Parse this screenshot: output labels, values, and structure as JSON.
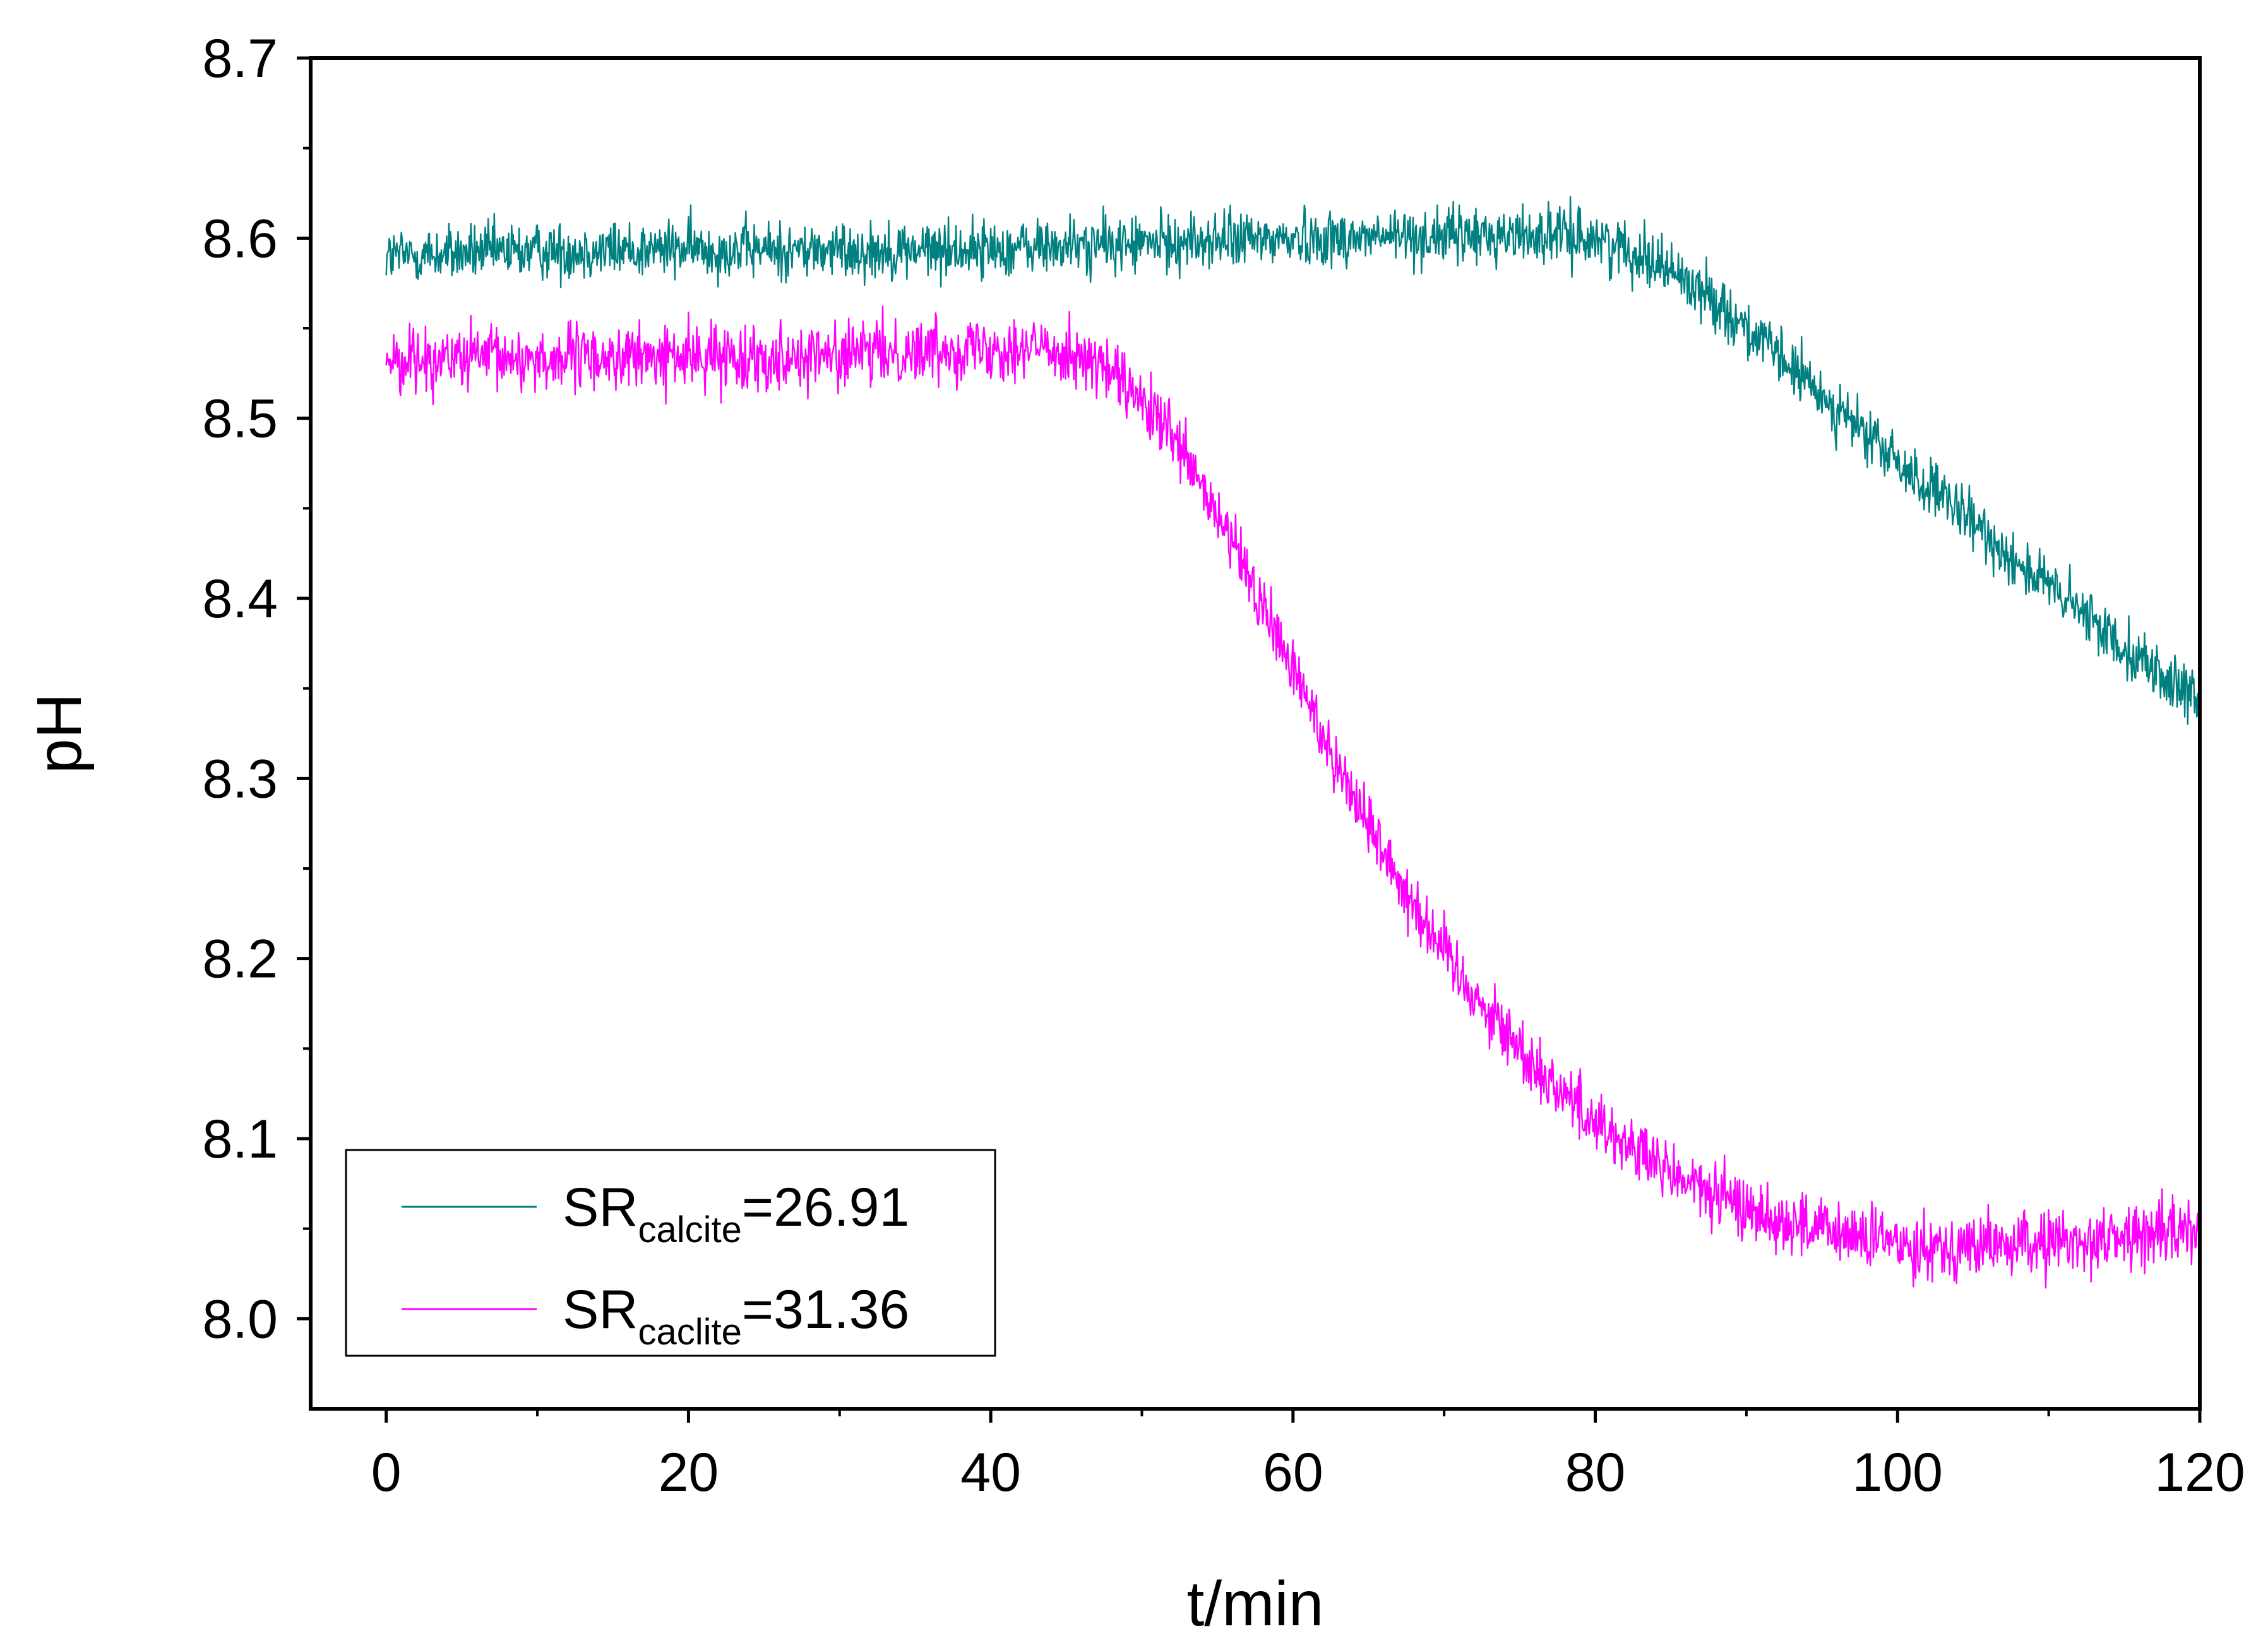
{
  "chart_data": {
    "type": "line",
    "title": "",
    "xlabel": "t/min",
    "ylabel": "pH",
    "xlim": [
      -5,
      120
    ],
    "ylim": [
      7.95,
      8.7
    ],
    "xticks": [
      0,
      20,
      40,
      60,
      80,
      100,
      120
    ],
    "xtick_labels": [
      "0",
      "20",
      "40",
      "60",
      "80",
      "100",
      "120"
    ],
    "yticks": [
      8.0,
      8.1,
      8.2,
      8.3,
      8.4,
      8.5,
      8.6,
      8.7
    ],
    "ytick_labels": [
      "8.0",
      "8.1",
      "8.2",
      "8.3",
      "8.4",
      "8.5",
      "8.6",
      "8.7"
    ],
    "grid": false,
    "legend_position": "bottom-left",
    "series": [
      {
        "name": "SR calcite=26.91",
        "legend_main": "SR",
        "legend_sub": "calcite",
        "legend_value": "=26.91",
        "color": "#008080",
        "noise": 0.008,
        "x": [
          0,
          10,
          20,
          30,
          40,
          50,
          60,
          70,
          76,
          80,
          84,
          88,
          92,
          96,
          100,
          104,
          108,
          112,
          116,
          120
        ],
        "y": [
          8.59,
          8.593,
          8.594,
          8.593,
          8.594,
          8.597,
          8.6,
          8.601,
          8.602,
          8.6,
          8.588,
          8.565,
          8.535,
          8.505,
          8.475,
          8.448,
          8.42,
          8.393,
          8.367,
          8.34
        ]
      },
      {
        "name": "SR caclite=31.36",
        "legend_main": "SR",
        "legend_sub": "caclite",
        "legend_value": "=31.36",
        "color": "#FF00FF",
        "noise": 0.009,
        "x": [
          0,
          10,
          20,
          30,
          40,
          45,
          48,
          52,
          56,
          60,
          64,
          68,
          72,
          76,
          80,
          84,
          88,
          92,
          96,
          100,
          104,
          108,
          112,
          116,
          120
        ],
        "y": [
          8.533,
          8.533,
          8.534,
          8.535,
          8.54,
          8.538,
          8.525,
          8.49,
          8.43,
          8.36,
          8.29,
          8.23,
          8.18,
          8.14,
          8.11,
          8.085,
          8.068,
          8.055,
          8.047,
          8.042,
          8.04,
          8.041,
          8.043,
          8.046,
          8.05
        ]
      }
    ]
  }
}
